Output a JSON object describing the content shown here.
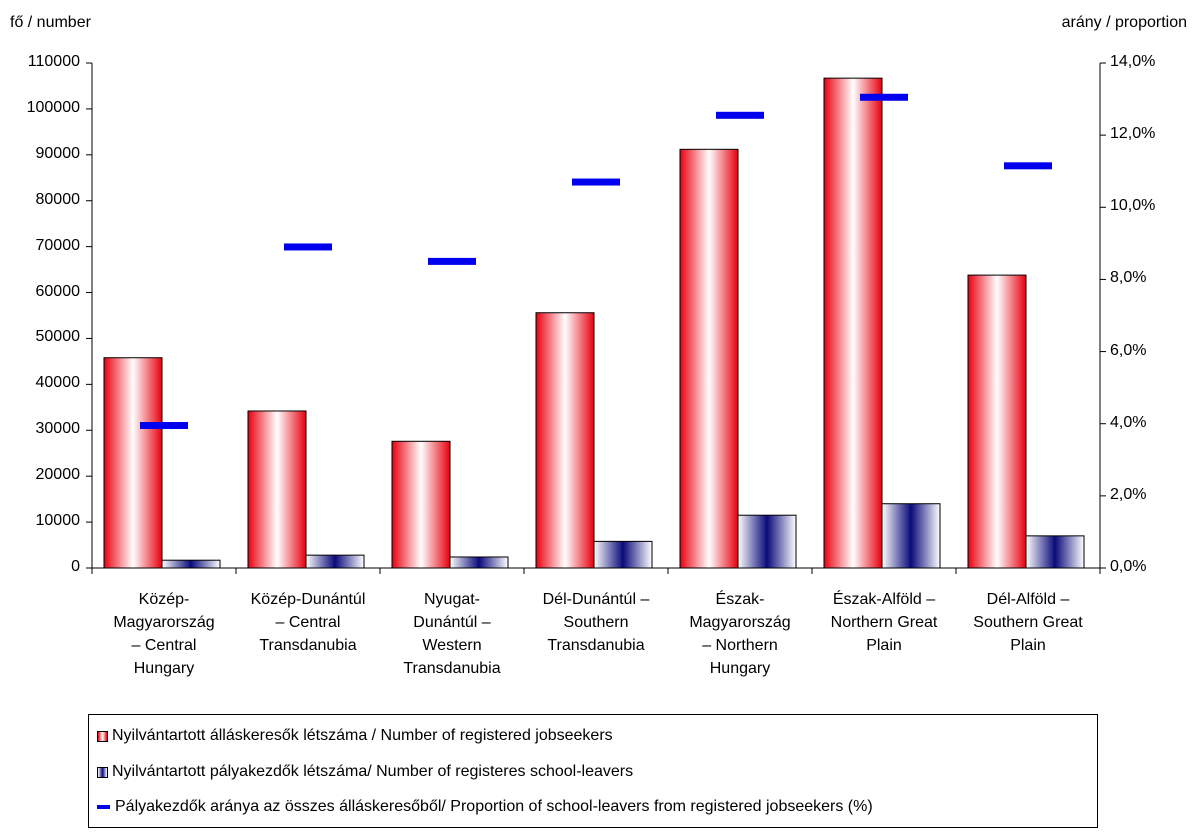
{
  "chart_data": {
    "type": "bar",
    "title": "",
    "categories": [
      [
        "Közép-",
        "Magyarország",
        "– Central",
        "Hungary"
      ],
      [
        "Közép-Dunántúl",
        "– Central",
        "Transdanubia"
      ],
      [
        "Nyugat-",
        "Dunántúl –",
        "Western",
        "Transdanubia"
      ],
      [
        "Dél-Dunántúl –",
        "Southern",
        "Transdanubia"
      ],
      [
        "Észak-",
        "Magyarország",
        "– Northern",
        "Hungary"
      ],
      [
        "Észak-Alföld –",
        "Northern Great",
        "Plain"
      ],
      [
        "Dél-Alföld –",
        "Southern Great",
        "Plain"
      ]
    ],
    "series": [
      {
        "name": "Nyilvántartott álláskeresők létszáma / Number of registered jobseekers",
        "type": "bar",
        "axis": "left",
        "color": "#e8000f",
        "values": [
          45800,
          34200,
          27600,
          55600,
          91200,
          106700,
          63800
        ]
      },
      {
        "name": "Nyilvántartott pályakezdők létszáma/ Number of registeres school-leavers",
        "type": "bar",
        "axis": "left",
        "color": "#0a0a7a",
        "values": [
          1700,
          2800,
          2400,
          5800,
          11500,
          14000,
          7000
        ]
      },
      {
        "name": "Pályakezdők aránya az összes álláskeresőből/ Proportion of school-leavers from registered jobseekers (%)",
        "type": "marker",
        "axis": "right",
        "color": "#0000ee",
        "values": [
          3.95,
          8.9,
          8.5,
          10.7,
          12.55,
          13.05,
          11.15
        ]
      }
    ],
    "ylabel_left": "fő / number",
    "ylabel_right": "arány / proportion",
    "ylim_left": [
      0,
      110000
    ],
    "ylim_right": [
      0,
      14
    ],
    "yticks_left": [
      "0",
      "10000",
      "20000",
      "30000",
      "40000",
      "50000",
      "60000",
      "70000",
      "80000",
      "90000",
      "100000",
      "110000"
    ],
    "yticks_right": [
      "0,0%",
      "2,0%",
      "4,0%",
      "6,0%",
      "8,0%",
      "10,0%",
      "12,0%",
      "14,0%"
    ],
    "grid": false,
    "legend_position": "bottom"
  }
}
